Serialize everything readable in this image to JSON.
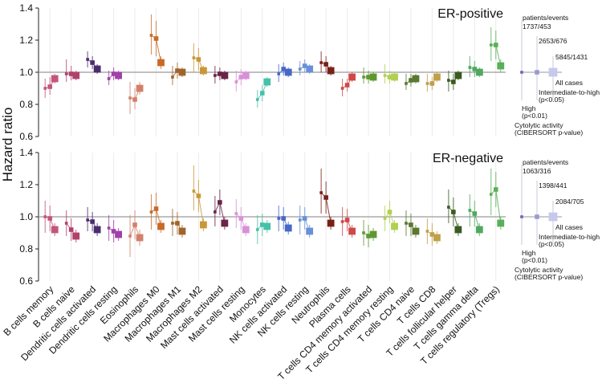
{
  "chart_data": {
    "type": "scatter",
    "ylabel": "Hazard ratio",
    "ylim": [
      0.6,
      1.4
    ],
    "yticks": [
      "0.6",
      "0.8",
      "1.0",
      "1.2",
      "1.4"
    ],
    "reference_line": 1.0,
    "marker_levels": [
      "High (p<0.01)",
      "Intermediate-to-high (p<0.05)",
      "All cases"
    ],
    "categories": [
      "B cells memory",
      "B cells naive",
      "Dendritic cells activated",
      "Dendritic cells resting",
      "Eosinophils",
      "Macrophages M0",
      "Macrophages M1",
      "Macrophages M2",
      "Mast cells activated",
      "Mast cells resting",
      "Monocytes",
      "NK cells activated",
      "NK cells resting",
      "Neutrophils",
      "Plasma cells",
      "T cells CD4 memory activated",
      "T cells CD4 memory resting",
      "T cells CD4 naive",
      "T cells CD8",
      "T cells follicular helper",
      "T cells gamma delta",
      "T cells regulatory (Tregs)"
    ],
    "colors": [
      "#c2567a",
      "#b0416a",
      "#4a2c6e",
      "#a040a8",
      "#d2806a",
      "#c86a28",
      "#a0642a",
      "#c89838",
      "#6a2448",
      "#d890d8",
      "#48c0a8",
      "#4868c8",
      "#6890d8",
      "#782018",
      "#d04848",
      "#609830",
      "#b0d050",
      "#5a7830",
      "#c0a048",
      "#3a5a20",
      "#50a860",
      "#58b058"
    ],
    "panels": [
      {
        "title": "ER-positive",
        "legend": {
          "header": "patients/events",
          "counts": [
            "1737/453",
            "2653/676",
            "5845/1431"
          ],
          "labels": [
            "All cases",
            "Intermediate-to-high",
            "(p<0.05)",
            "High",
            "(p<0.01)",
            "Cytolytic activity",
            "(CIBERSORT p-value)"
          ]
        },
        "series": [
          {
            "name": "High (p<0.01)",
            "values": [
              0.9,
              0.99,
              1.08,
              0.96,
              0.84,
              1.23,
              0.97,
              1.09,
              0.98,
              0.94,
              0.83,
              0.99,
              1.02,
              1.06,
              0.9,
              0.97,
              0.98,
              0.93,
              0.93,
              0.95,
              1.03,
              1.17
            ],
            "lo": [
              0.84,
              0.94,
              1.03,
              0.92,
              0.74,
              1.11,
              0.92,
              1.0,
              0.93,
              0.88,
              0.78,
              0.94,
              0.98,
              1.0,
              0.85,
              0.93,
              0.93,
              0.89,
              0.88,
              0.88,
              0.97,
              1.07
            ],
            "hi": [
              0.96,
              1.08,
              1.13,
              1.01,
              0.94,
              1.36,
              1.04,
              1.18,
              1.04,
              1.01,
              0.89,
              1.05,
              1.07,
              1.13,
              0.96,
              1.03,
              1.05,
              0.99,
              0.99,
              1.01,
              1.1,
              1.28
            ]
          },
          {
            "name": "Intermediate-to-high (p<0.05)",
            "values": [
              0.91,
              0.99,
              1.06,
              0.99,
              0.83,
              1.21,
              1.01,
              1.08,
              0.99,
              0.97,
              0.87,
              1.02,
              1.04,
              1.05,
              0.92,
              0.97,
              0.97,
              0.95,
              0.93,
              0.94,
              1.02,
              1.17
            ],
            "lo": [
              0.86,
              0.95,
              1.02,
              0.95,
              0.77,
              1.1,
              0.96,
              1.01,
              0.95,
              0.92,
              0.82,
              0.98,
              1.0,
              1.0,
              0.88,
              0.93,
              0.93,
              0.91,
              0.89,
              0.89,
              0.97,
              1.08
            ],
            "hi": [
              0.97,
              1.04,
              1.1,
              1.03,
              0.9,
              1.32,
              1.06,
              1.15,
              1.03,
              1.02,
              0.92,
              1.06,
              1.08,
              1.1,
              0.96,
              1.01,
              1.01,
              0.99,
              0.97,
              0.99,
              1.07,
              1.26
            ]
          },
          {
            "name": "All cases",
            "values": [
              0.96,
              0.98,
              1.02,
              0.98,
              0.9,
              1.06,
              1.0,
              1.01,
              0.98,
              0.98,
              0.94,
              1.0,
              1.02,
              1.01,
              0.97,
              0.97,
              0.97,
              0.96,
              0.97,
              0.98,
              1.0,
              1.04
            ],
            "lo": [
              0.93,
              0.95,
              0.99,
              0.95,
              0.86,
              1.02,
              0.97,
              0.98,
              0.95,
              0.95,
              0.91,
              0.97,
              0.99,
              0.98,
              0.94,
              0.94,
              0.94,
              0.93,
              0.94,
              0.95,
              0.97,
              1.0
            ],
            "hi": [
              0.99,
              1.01,
              1.05,
              1.01,
              0.94,
              1.1,
              1.03,
              1.04,
              1.01,
              1.01,
              0.97,
              1.03,
              1.05,
              1.04,
              1.0,
              1.0,
              1.0,
              0.99,
              1.0,
              1.01,
              1.03,
              1.08
            ]
          }
        ]
      },
      {
        "title": "ER-negative",
        "legend": {
          "header": "patients/events",
          "counts": [
            "1063/316",
            "1398/441",
            "2084/705"
          ],
          "labels": [
            "All cases",
            "Intermediate-to-high",
            "(p<0.05)",
            "High",
            "(p<0.01)",
            "Cytolytic activity",
            "(CIBERSORT p-value)"
          ]
        },
        "series": [
          {
            "name": "High (p<0.01)",
            "values": [
              1.0,
              0.96,
              0.98,
              0.93,
              0.88,
              1.03,
              0.96,
              1.16,
              1.03,
              1.02,
              0.92,
              0.99,
              0.98,
              1.15,
              0.97,
              0.9,
              0.99,
              0.96,
              0.91,
              1.06,
              1.04,
              1.14
            ],
            "lo": [
              0.9,
              0.88,
              0.91,
              0.85,
              0.75,
              0.92,
              0.88,
              1.04,
              0.94,
              0.93,
              0.83,
              0.91,
              0.89,
              1.02,
              0.88,
              0.82,
              0.91,
              0.88,
              0.83,
              0.96,
              0.94,
              1.01
            ],
            "hi": [
              1.1,
              1.04,
              1.06,
              1.01,
              1.01,
              1.14,
              1.05,
              1.32,
              1.13,
              1.11,
              1.01,
              1.07,
              1.07,
              1.3,
              1.06,
              0.98,
              1.07,
              1.04,
              0.99,
              1.17,
              1.14,
              1.3
            ]
          },
          {
            "name": "Intermediate-to-high (p<0.05)",
            "values": [
              0.99,
              0.92,
              0.97,
              0.91,
              0.95,
              1.05,
              0.96,
              1.13,
              1.09,
              0.99,
              0.95,
              0.99,
              0.99,
              1.12,
              0.98,
              0.88,
              1.03,
              0.95,
              0.89,
              1.03,
              1.02,
              1.17
            ],
            "lo": [
              0.91,
              0.85,
              0.91,
              0.84,
              0.86,
              0.95,
              0.89,
              1.03,
              1.01,
              0.92,
              0.88,
              0.92,
              0.92,
              1.02,
              0.91,
              0.81,
              0.96,
              0.88,
              0.82,
              0.94,
              0.94,
              1.06
            ],
            "hi": [
              1.07,
              0.99,
              1.03,
              0.98,
              1.04,
              1.15,
              1.03,
              1.23,
              1.17,
              1.06,
              1.02,
              1.06,
              1.06,
              1.22,
              1.05,
              0.95,
              1.1,
              1.02,
              0.96,
              1.12,
              1.1,
              1.28
            ]
          },
          {
            "name": "All cases",
            "values": [
              0.92,
              0.88,
              0.92,
              0.89,
              0.87,
              0.94,
              0.91,
              0.95,
              0.96,
              0.92,
              0.94,
              0.93,
              0.91,
              0.96,
              0.91,
              0.89,
              0.94,
              0.91,
              0.87,
              0.92,
              0.92,
              0.96
            ],
            "lo": [
              0.88,
              0.84,
              0.88,
              0.85,
              0.82,
              0.9,
              0.87,
              0.91,
              0.92,
              0.88,
              0.9,
              0.89,
              0.87,
              0.92,
              0.87,
              0.85,
              0.9,
              0.87,
              0.83,
              0.88,
              0.88,
              0.92
            ],
            "hi": [
              0.96,
              0.92,
              0.96,
              0.93,
              0.92,
              0.98,
              0.95,
              0.99,
              1.0,
              0.96,
              0.98,
              0.97,
              0.95,
              1.0,
              0.95,
              0.93,
              0.98,
              0.95,
              0.91,
              0.96,
              0.96,
              1.0
            ]
          }
        ]
      }
    ]
  }
}
